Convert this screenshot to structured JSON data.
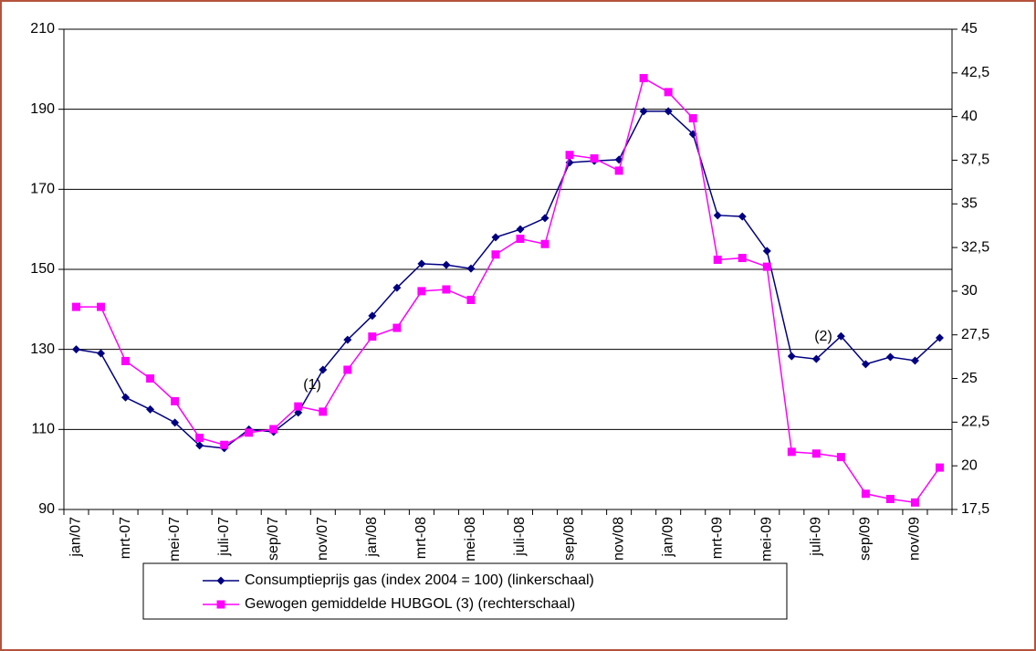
{
  "chart_data": {
    "type": "line",
    "categories": [
      "jan/07",
      null,
      "mrt-07",
      null,
      "mei-07",
      null,
      "juli-07",
      null,
      "sep/07",
      null,
      "nov/07",
      null,
      "jan/08",
      null,
      "mrt-08",
      null,
      "mei-08",
      null,
      "juli-08",
      null,
      "sep/08",
      null,
      "nov/08",
      null,
      "jan/09",
      null,
      "mrt-09",
      null,
      "mei-09",
      null,
      "juli-09",
      null,
      "sep/09",
      null,
      "nov/09",
      null
    ],
    "series": [
      {
        "name": "Consumptieprijs gas (index 2004 = 100) (linkerschaal)",
        "color": "#000080",
        "marker": "diamond",
        "values": [
          130,
          129,
          118,
          115,
          111.7,
          106,
          105.3,
          110,
          109.4,
          114.2,
          124.9,
          132.4,
          138.4,
          145.4,
          151.4,
          151.1,
          150.2,
          158,
          160,
          162.8,
          176.7,
          177.1,
          177.4,
          189.5,
          189.5,
          183.8,
          163.5,
          163.2,
          154.6,
          128.3,
          127.6,
          133.3,
          126.3,
          128.1,
          127.2,
          132.9
        ]
      },
      {
        "name": "Gewogen gemiddelde HUBGOL (3) (rechterschaal)",
        "color": "#ff00ff",
        "marker": "square",
        "axis": "y2",
        "values": [
          29.1,
          29.1,
          26,
          25,
          23.7,
          21.6,
          21.2,
          21.9,
          22.1,
          23.4,
          23.1,
          25.5,
          27.4,
          27.9,
          30,
          30.1,
          29.5,
          32.1,
          33,
          32.7,
          37.8,
          37.6,
          36.9,
          42.2,
          41.4,
          39.9,
          31.8,
          31.9,
          31.4,
          20.8,
          20.7,
          20.5,
          18.4,
          18.1,
          17.9,
          19.9
        ]
      }
    ],
    "ylim": [
      90,
      210
    ],
    "yticks": [
      90,
      110,
      130,
      150,
      170,
      190,
      210
    ],
    "y2lim": [
      17.5,
      45
    ],
    "y2ticks": [
      {
        "value": 17.5,
        "label": "17,5"
      },
      20,
      {
        "value": 22.5,
        "label": "22,5"
      },
      25,
      {
        "value": 27.5,
        "label": "27,5"
      },
      30,
      {
        "value": 32.5,
        "label": "32,5"
      },
      35,
      {
        "value": 37.5,
        "label": "37,5"
      },
      40,
      {
        "value": 42.5,
        "label": "42,5"
      },
      45
    ],
    "annotations": [
      "(1)",
      "(2)"
    ],
    "grid": true,
    "legend": "bottom"
  }
}
